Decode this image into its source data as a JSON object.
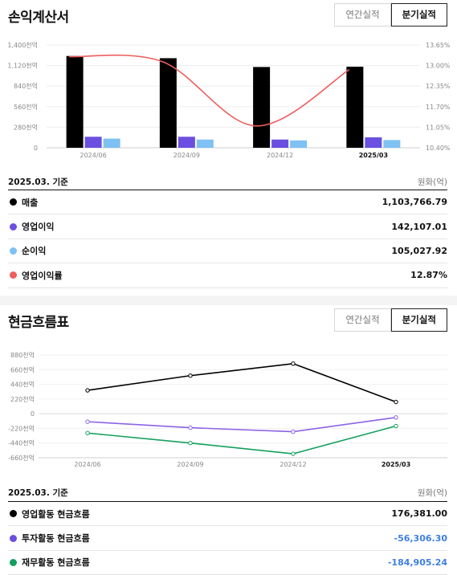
{
  "income": {
    "title": "손익계산서",
    "toggle": [
      "연간실적",
      "분기실적"
    ],
    "active_toggle": 1,
    "basis": "2025.03. 기준",
    "unit": "원화(억)",
    "rows": [
      {
        "label": "매출",
        "value": "1,103,766.79",
        "color": "#000000",
        "negative": false
      },
      {
        "label": "영업이익",
        "value": "142,107.01",
        "color": "#6a4fe0",
        "negative": false
      },
      {
        "label": "순이익",
        "value": "105,027.92",
        "color": "#7ec1f2",
        "negative": false
      },
      {
        "label": "영업이익률",
        "value": "12.87%",
        "color": "#ef5d5d",
        "negative": false
      }
    ]
  },
  "cash": {
    "title": "현금흐름표",
    "toggle": [
      "연간실적",
      "분기실적"
    ],
    "active_toggle": 1,
    "basis": "2025.03. 기준",
    "unit": "원화(억)",
    "rows": [
      {
        "label": "영업활동 현금흐름",
        "value": "176,381.00",
        "color": "#000000",
        "negative": false
      },
      {
        "label": "투자활동 현금흐름",
        "value": "-56,306.30",
        "color": "#6a4fe0",
        "negative": true
      },
      {
        "label": "재무활동 현금흐름",
        "value": "-184,905.24",
        "color": "#12a05c",
        "negative": true
      }
    ]
  },
  "chart_data": [
    {
      "type": "bar",
      "categories": [
        "2024/06",
        "2024/09",
        "2024/12",
        "2025/03"
      ],
      "highlight_category": "2025/03",
      "y_ticks": [
        "0",
        "280천억",
        "560천억",
        "840천억",
        "1,120천억",
        "1,400천억"
      ],
      "ylim": [
        0,
        1400
      ],
      "y2_ticks": [
        "10.40%",
        "11.05%",
        "11.70%",
        "12.35%",
        "13.00%",
        "13.65%"
      ],
      "y2lim": [
        10.4,
        13.65
      ],
      "series": [
        {
          "name": "매출",
          "values": [
            1250,
            1220,
            1100,
            1104
          ],
          "color": "#000000"
        },
        {
          "name": "영업이익",
          "values": [
            150,
            150,
            112,
            142
          ],
          "color": "#6a4fe0"
        },
        {
          "name": "순이익",
          "values": [
            125,
            112,
            100,
            105
          ],
          "color": "#7ec1f2"
        },
        {
          "name": "영업이익률",
          "type": "line",
          "axis": "right",
          "values": [
            13.28,
            13.12,
            11.09,
            12.87
          ],
          "color": "#ef5d5d"
        }
      ]
    },
    {
      "type": "line",
      "categories": [
        "2024/06",
        "2024/09",
        "2024/12",
        "2025/03"
      ],
      "highlight_category": "2025/03",
      "y_ticks": [
        "-660천억",
        "-440천억",
        "-220천억",
        "0",
        "220천억",
        "440천억",
        "660천억",
        "880천억"
      ],
      "ylim": [
        -660,
        880
      ],
      "series": [
        {
          "name": "영업활동 현금흐름",
          "values": [
            350,
            570,
            750,
            176
          ],
          "color": "#000000"
        },
        {
          "name": "투자활동 현금흐름",
          "values": [
            -120,
            -210,
            -270,
            -56
          ],
          "color": "#8b63e6"
        },
        {
          "name": "재무활동 현금흐름",
          "values": [
            -290,
            -440,
            -600,
            -185
          ],
          "color": "#12a05c"
        }
      ]
    }
  ]
}
